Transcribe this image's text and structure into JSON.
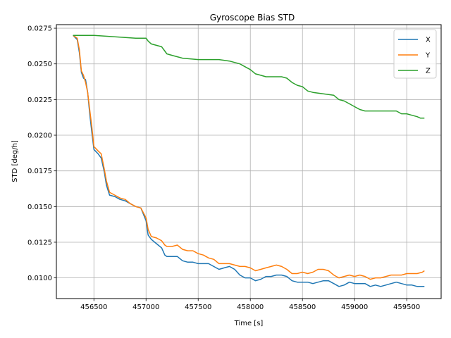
{
  "chart_data": {
    "type": "line",
    "title": "Gyroscope Bias STD",
    "xlabel": "Time [s]",
    "ylabel": "STD [deg/h]",
    "xlim": [
      456140,
      459830
    ],
    "ylim": [
      0.00855,
      0.02775
    ],
    "x_ticks": [
      456500,
      457000,
      457500,
      458000,
      458500,
      459000,
      459500
    ],
    "x_tick_labels": [
      "456500",
      "457000",
      "457500",
      "458000",
      "458500",
      "459000",
      "459500"
    ],
    "y_ticks": [
      0.01,
      0.0125,
      0.015,
      0.0175,
      0.02,
      0.0225,
      0.025,
      0.0275
    ],
    "y_tick_labels": [
      "0.0100",
      "0.0125",
      "0.0150",
      "0.0175",
      "0.0200",
      "0.0225",
      "0.0250",
      "0.0275"
    ],
    "grid": true,
    "legend_position": "top-right",
    "series": [
      {
        "name": "X",
        "color": "#1f77b4",
        "points": [
          [
            456300,
            0.027
          ],
          [
            456340,
            0.0267
          ],
          [
            456360,
            0.0258
          ],
          [
            456380,
            0.0244
          ],
          [
            456400,
            0.024
          ],
          [
            456420,
            0.0239
          ],
          [
            456440,
            0.023
          ],
          [
            456460,
            0.0215
          ],
          [
            456480,
            0.0202
          ],
          [
            456500,
            0.019
          ],
          [
            456540,
            0.0187
          ],
          [
            456570,
            0.0184
          ],
          [
            456600,
            0.0174
          ],
          [
            456620,
            0.0165
          ],
          [
            456650,
            0.0158
          ],
          [
            456700,
            0.0157
          ],
          [
            456750,
            0.0155
          ],
          [
            456800,
            0.0154
          ],
          [
            456850,
            0.0152
          ],
          [
            456900,
            0.015
          ],
          [
            456950,
            0.0149
          ],
          [
            457000,
            0.014
          ],
          [
            457020,
            0.013
          ],
          [
            457050,
            0.0127
          ],
          [
            457100,
            0.0124
          ],
          [
            457150,
            0.0121
          ],
          [
            457180,
            0.0116
          ],
          [
            457200,
            0.0115
          ],
          [
            457300,
            0.0115
          ],
          [
            457350,
            0.0112
          ],
          [
            457400,
            0.0111
          ],
          [
            457450,
            0.0111
          ],
          [
            457500,
            0.011
          ],
          [
            457600,
            0.011
          ],
          [
            457700,
            0.0106
          ],
          [
            457750,
            0.0107
          ],
          [
            457800,
            0.0108
          ],
          [
            457850,
            0.0106
          ],
          [
            457900,
            0.0102
          ],
          [
            457950,
            0.01
          ],
          [
            458000,
            0.01
          ],
          [
            458050,
            0.0098
          ],
          [
            458100,
            0.0099
          ],
          [
            458150,
            0.0101
          ],
          [
            458200,
            0.0101
          ],
          [
            458250,
            0.0102
          ],
          [
            458300,
            0.0102
          ],
          [
            458350,
            0.0101
          ],
          [
            458400,
            0.0098
          ],
          [
            458450,
            0.0097
          ],
          [
            458500,
            0.0097
          ],
          [
            458550,
            0.0097
          ],
          [
            458600,
            0.0096
          ],
          [
            458650,
            0.0097
          ],
          [
            458700,
            0.0098
          ],
          [
            458750,
            0.0098
          ],
          [
            458800,
            0.0096
          ],
          [
            458850,
            0.0094
          ],
          [
            458900,
            0.0095
          ],
          [
            458950,
            0.0097
          ],
          [
            459000,
            0.0096
          ],
          [
            459050,
            0.0096
          ],
          [
            459100,
            0.0096
          ],
          [
            459150,
            0.0094
          ],
          [
            459200,
            0.0095
          ],
          [
            459250,
            0.0094
          ],
          [
            459300,
            0.0095
          ],
          [
            459350,
            0.0096
          ],
          [
            459400,
            0.0097
          ],
          [
            459450,
            0.0096
          ],
          [
            459500,
            0.0095
          ],
          [
            459550,
            0.0095
          ],
          [
            459600,
            0.0094
          ],
          [
            459650,
            0.0094
          ],
          [
            459670,
            0.0094
          ]
        ]
      },
      {
        "name": "Y",
        "color": "#ff7f0e",
        "points": [
          [
            456300,
            0.027
          ],
          [
            456340,
            0.0268
          ],
          [
            456360,
            0.026
          ],
          [
            456380,
            0.0245
          ],
          [
            456400,
            0.0242
          ],
          [
            456420,
            0.0237
          ],
          [
            456440,
            0.023
          ],
          [
            456460,
            0.0218
          ],
          [
            456480,
            0.0206
          ],
          [
            456500,
            0.0192
          ],
          [
            456540,
            0.0189
          ],
          [
            456570,
            0.0187
          ],
          [
            456600,
            0.0176
          ],
          [
            456620,
            0.0168
          ],
          [
            456650,
            0.016
          ],
          [
            456700,
            0.0158
          ],
          [
            456750,
            0.0156
          ],
          [
            456800,
            0.0155
          ],
          [
            456850,
            0.0152
          ],
          [
            456900,
            0.015
          ],
          [
            456950,
            0.0149
          ],
          [
            457000,
            0.0142
          ],
          [
            457020,
            0.0134
          ],
          [
            457050,
            0.0129
          ],
          [
            457100,
            0.0128
          ],
          [
            457150,
            0.0126
          ],
          [
            457180,
            0.0123
          ],
          [
            457200,
            0.0122
          ],
          [
            457250,
            0.0122
          ],
          [
            457300,
            0.0123
          ],
          [
            457350,
            0.012
          ],
          [
            457400,
            0.0119
          ],
          [
            457450,
            0.0119
          ],
          [
            457500,
            0.0117
          ],
          [
            457550,
            0.0116
          ],
          [
            457600,
            0.0114
          ],
          [
            457650,
            0.0113
          ],
          [
            457700,
            0.011
          ],
          [
            457750,
            0.011
          ],
          [
            457800,
            0.011
          ],
          [
            457850,
            0.0109
          ],
          [
            457900,
            0.0108
          ],
          [
            457950,
            0.0108
          ],
          [
            458000,
            0.0107
          ],
          [
            458050,
            0.0105
          ],
          [
            458100,
            0.0106
          ],
          [
            458150,
            0.0107
          ],
          [
            458200,
            0.0108
          ],
          [
            458250,
            0.0109
          ],
          [
            458300,
            0.0108
          ],
          [
            458350,
            0.0106
          ],
          [
            458400,
            0.0103
          ],
          [
            458450,
            0.0103
          ],
          [
            458500,
            0.0104
          ],
          [
            458550,
            0.0103
          ],
          [
            458600,
            0.0104
          ],
          [
            458650,
            0.0106
          ],
          [
            458700,
            0.0106
          ],
          [
            458750,
            0.0105
          ],
          [
            458800,
            0.0102
          ],
          [
            458850,
            0.01
          ],
          [
            458900,
            0.0101
          ],
          [
            458950,
            0.0102
          ],
          [
            459000,
            0.0101
          ],
          [
            459050,
            0.0102
          ],
          [
            459100,
            0.0101
          ],
          [
            459150,
            0.0099
          ],
          [
            459200,
            0.01
          ],
          [
            459250,
            0.01
          ],
          [
            459300,
            0.0101
          ],
          [
            459350,
            0.0102
          ],
          [
            459400,
            0.0102
          ],
          [
            459450,
            0.0102
          ],
          [
            459500,
            0.0103
          ],
          [
            459550,
            0.0103
          ],
          [
            459600,
            0.0103
          ],
          [
            459650,
            0.0104
          ],
          [
            459670,
            0.0105
          ]
        ]
      },
      {
        "name": "Z",
        "color": "#2ca02c",
        "points": [
          [
            456300,
            0.027
          ],
          [
            456500,
            0.027
          ],
          [
            456700,
            0.0269
          ],
          [
            456900,
            0.0268
          ],
          [
            457000,
            0.0268
          ],
          [
            457020,
            0.0266
          ],
          [
            457050,
            0.0264
          ],
          [
            457100,
            0.0263
          ],
          [
            457150,
            0.0262
          ],
          [
            457180,
            0.0259
          ],
          [
            457200,
            0.0257
          ],
          [
            457250,
            0.0256
          ],
          [
            457300,
            0.0255
          ],
          [
            457350,
            0.0254
          ],
          [
            457500,
            0.0253
          ],
          [
            457700,
            0.0253
          ],
          [
            457800,
            0.0252
          ],
          [
            457850,
            0.0251
          ],
          [
            457900,
            0.025
          ],
          [
            457950,
            0.0248
          ],
          [
            458000,
            0.0246
          ],
          [
            458050,
            0.0243
          ],
          [
            458100,
            0.0242
          ],
          [
            458150,
            0.0241
          ],
          [
            458200,
            0.0241
          ],
          [
            458300,
            0.0241
          ],
          [
            458350,
            0.024
          ],
          [
            458400,
            0.0237
          ],
          [
            458450,
            0.0235
          ],
          [
            458500,
            0.0234
          ],
          [
            458550,
            0.0231
          ],
          [
            458600,
            0.023
          ],
          [
            458700,
            0.0229
          ],
          [
            458800,
            0.0228
          ],
          [
            458850,
            0.0225
          ],
          [
            458900,
            0.0224
          ],
          [
            458950,
            0.0222
          ],
          [
            459000,
            0.022
          ],
          [
            459050,
            0.0218
          ],
          [
            459100,
            0.0217
          ],
          [
            459200,
            0.0217
          ],
          [
            459300,
            0.0217
          ],
          [
            459400,
            0.0217
          ],
          [
            459450,
            0.0215
          ],
          [
            459500,
            0.0215
          ],
          [
            459550,
            0.0214
          ],
          [
            459600,
            0.0213
          ],
          [
            459630,
            0.0212
          ],
          [
            459670,
            0.0212
          ]
        ]
      }
    ]
  }
}
